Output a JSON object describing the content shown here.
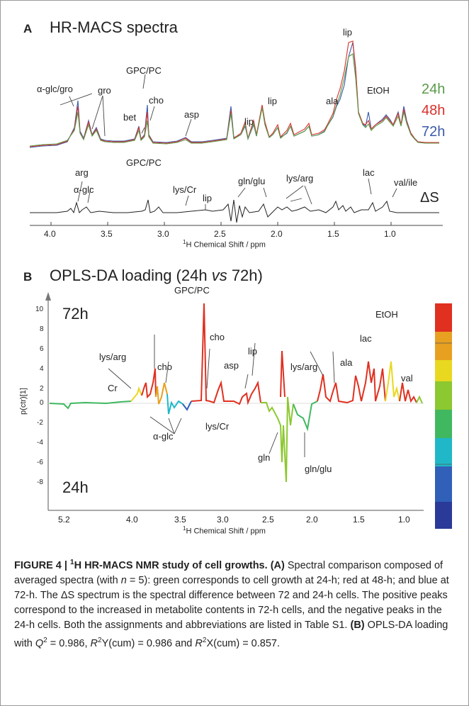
{
  "panel_a": {
    "letter": "A",
    "title": "HR-MACS spectra",
    "legend": [
      {
        "name": "24h",
        "color": "#5a9a4a"
      },
      {
        "name": "48h",
        "color": "#d9302b"
      },
      {
        "name": "72h",
        "color": "#3a5aa8"
      }
    ],
    "delta_label": "ΔS",
    "spectrum_labels": [
      "α-glc/gro",
      "gro",
      "GPC/PC",
      "bet",
      "cho",
      "asp",
      "lip",
      "lip",
      "lip",
      "ala",
      "EtOH"
    ],
    "delta_labels": [
      "arg",
      "α-glc",
      "GPC/PC",
      "lys/Cr",
      "lip",
      "gln/glu",
      "lys/arg",
      "lac",
      "val/ile"
    ],
    "x_ticks": [
      "4.0",
      "3.5",
      "3.0",
      "2.5",
      "2.0",
      "1.5",
      "1.0"
    ],
    "x_axis_title_sup": "1",
    "x_axis_title": "H Chemical Shift / ppm"
  },
  "panel_b": {
    "letter": "B",
    "title_pre": "OPLS-DA loading (24h ",
    "title_vs": "vs",
    "title_post": " 72h)",
    "top_group": "72h",
    "bottom_group": "24h",
    "y_axis_title": "p(ctr)[1]",
    "y_ticks": [
      "10",
      "8",
      "6",
      "4",
      "2",
      "0",
      "-2",
      "-4",
      "-6",
      "-8"
    ],
    "x_ticks": [
      "5.2",
      "4.0",
      "3.5",
      "3.0",
      "2.5",
      "2.0",
      "1.5",
      "1.0"
    ],
    "x_axis_title_sup": "1",
    "x_axis_title": "H Chemical Shift / ppm",
    "labels": [
      "GPC/PC",
      "EtOH",
      "cho",
      "lys/arg",
      "cho",
      "lip",
      "asp",
      "lac",
      "ala",
      "lys/arg",
      "Cr",
      "val",
      "α-glc",
      "lys/Cr",
      "gln",
      "gln/glu"
    ],
    "colorbar_colors": [
      "#e03020",
      "#e8a020",
      "#e8d820",
      "#8cc830",
      "#40b860",
      "#20b8c8",
      "#3060b8",
      "#2a3a98"
    ]
  },
  "caption": {
    "head": "FIGURE 4 | ",
    "head_sup": "1",
    "head_rest": "H HR-MACS NMR study of cell growths.",
    "a_label": "(A)",
    "a_text_1": " Spectral comparison composed of averaged spectra (with ",
    "n_symbol": "n",
    "a_text_2": " = 5): green corresponds to cell growth at 24-h; red at 48-h; and blue at 72-h. The ΔS spectrum is the spectral difference between 72 and 24-h cells. The positive peaks correspond to the increased in metabolite contents in 72-h cells, and the negative peaks in the 24-h cells. Both the assignments and abbreviations are listed in Table S1.",
    "b_label": "(B)",
    "b_text_1": " OPLS-DA loading with ",
    "q_symbol": "Q",
    "q_sup": "2",
    "b_text_2": " = 0.986, ",
    "r_symbol": "R",
    "r_sup": "2",
    "b_text_3": "Y(cum) = 0.986 and ",
    "r2_symbol": "R",
    "r2_sup": "2",
    "b_text_4": "X(cum) = 0.857."
  }
}
